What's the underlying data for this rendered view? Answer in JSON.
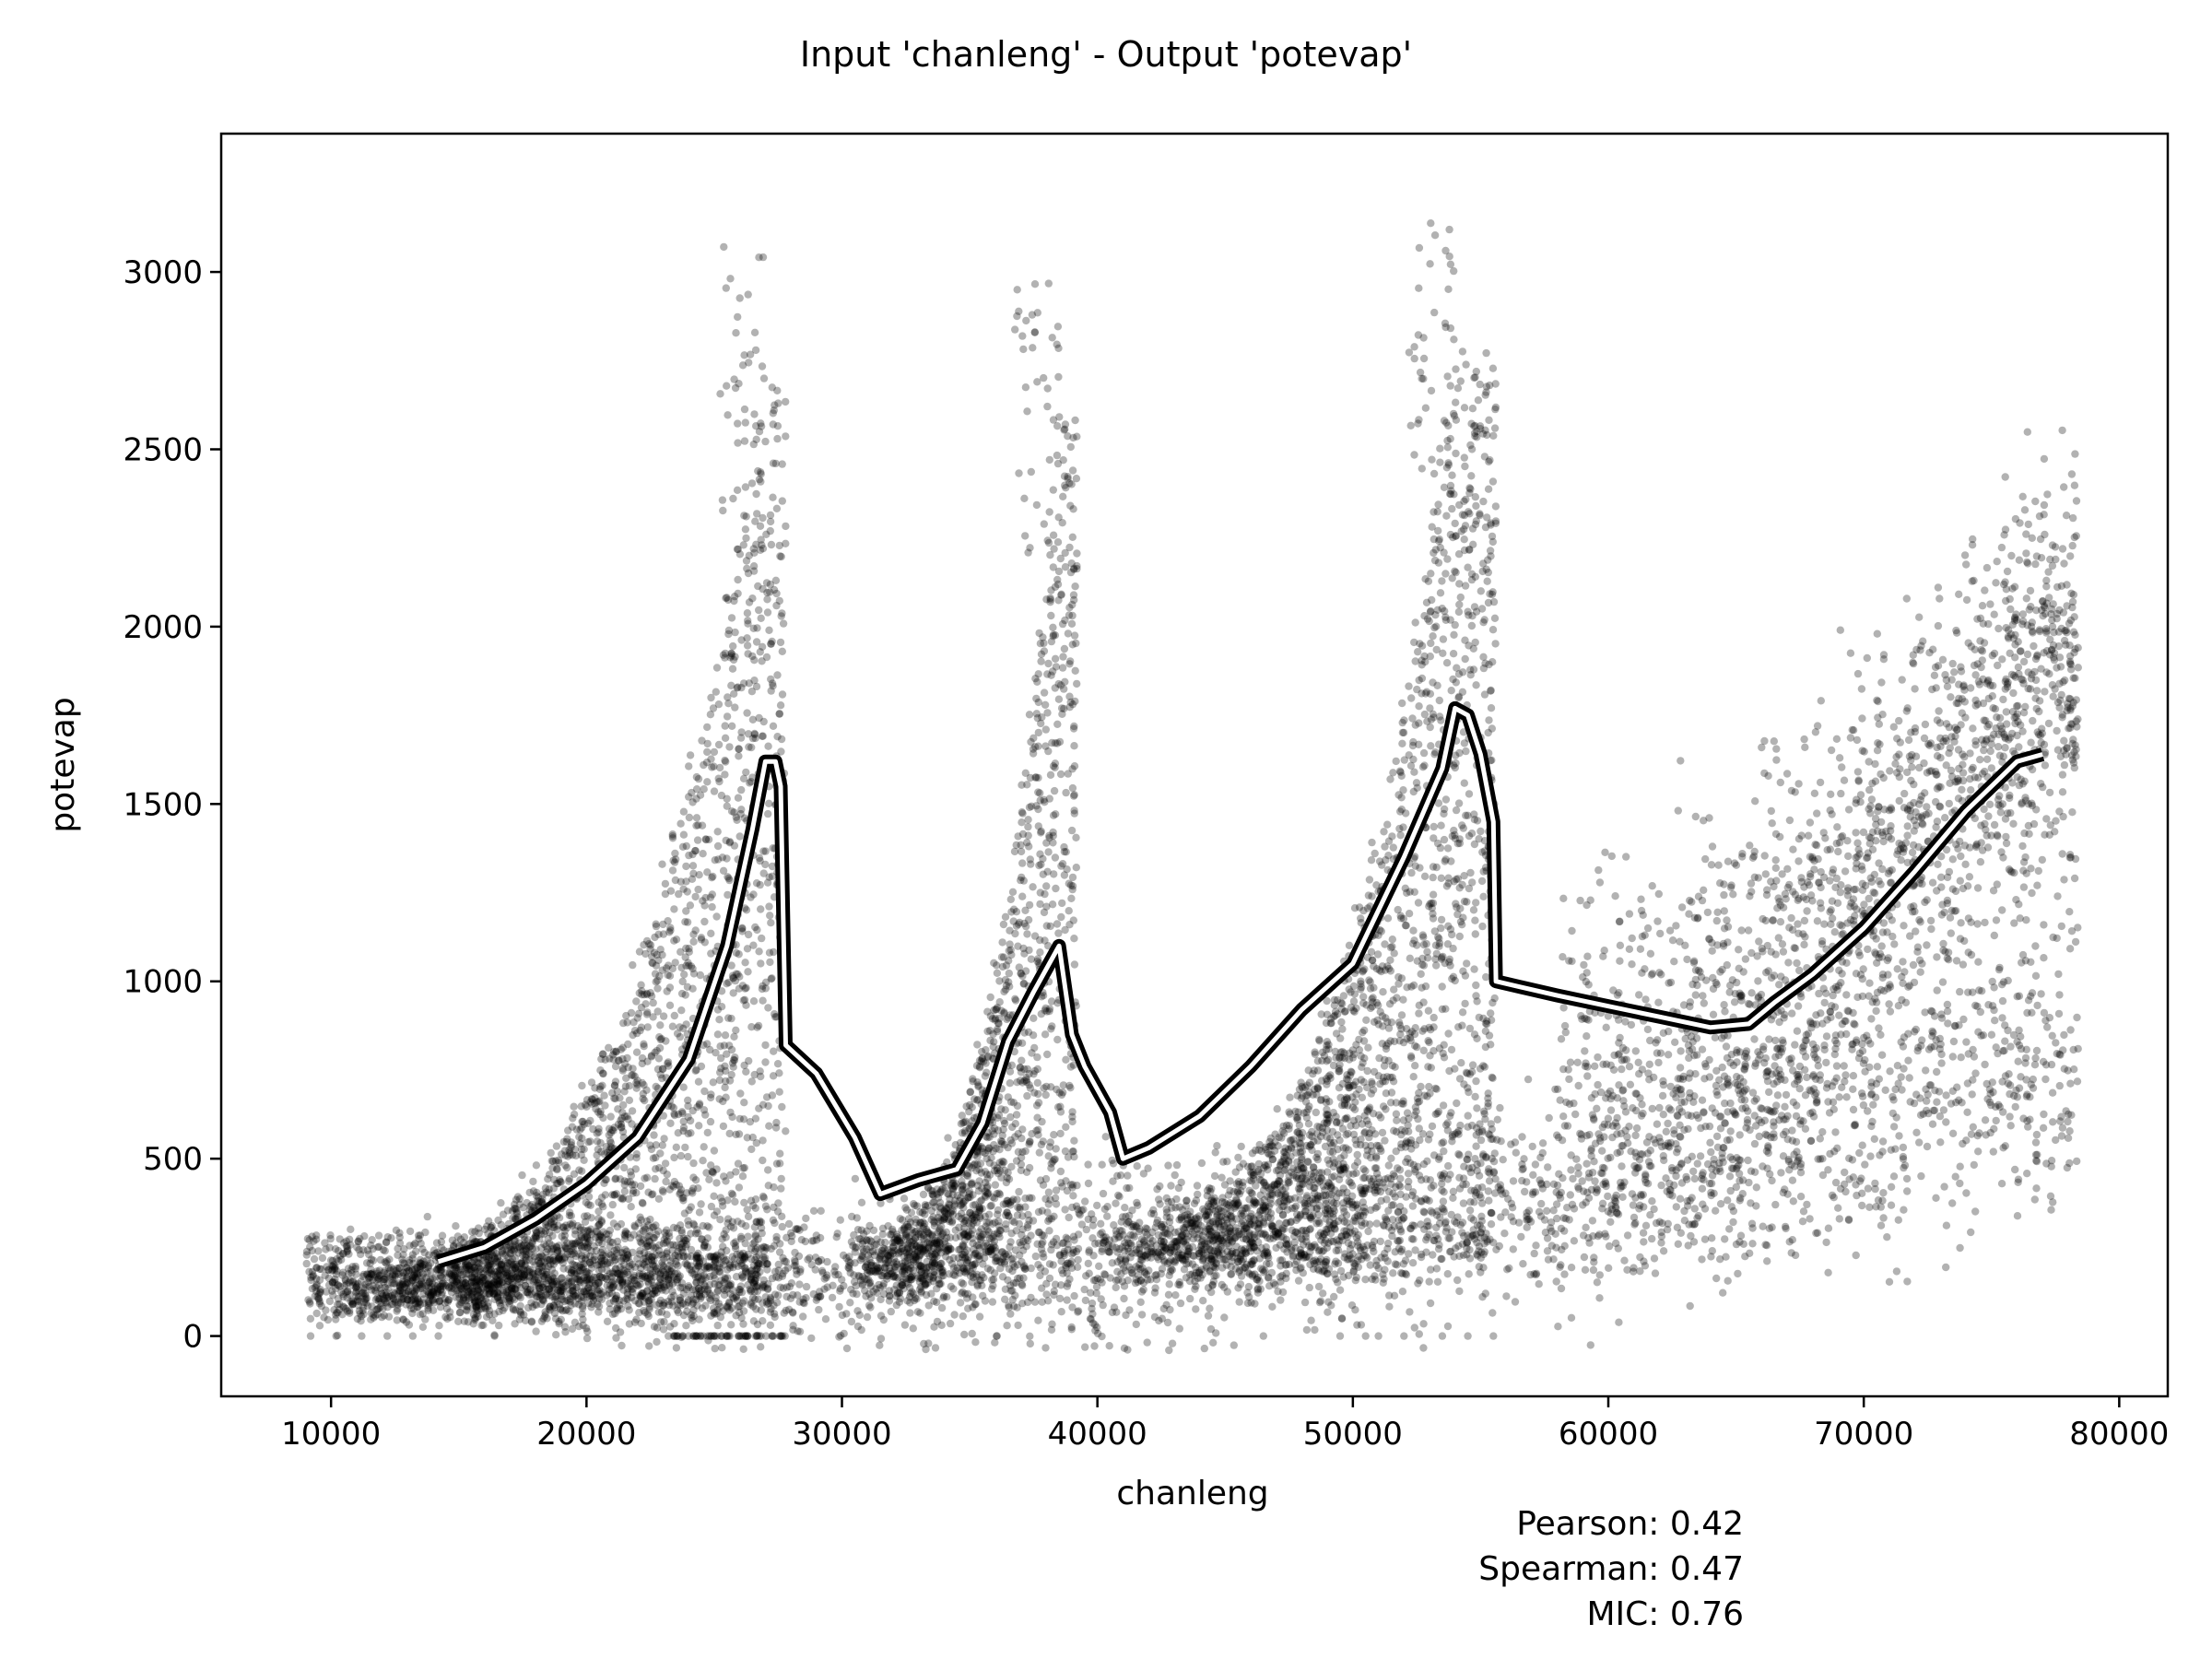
{
  "chart_data": {
    "type": "scatter",
    "title": "Input 'chanleng' - Output 'potevap'",
    "xlabel": "chanleng",
    "ylabel": "potevap",
    "xlim": [
      5700,
      81900
    ],
    "ylim": [
      -170,
      3390
    ],
    "xticks": [
      10000,
      20000,
      30000,
      40000,
      50000,
      60000,
      70000,
      80000
    ],
    "yticks": [
      0,
      500,
      1000,
      1500,
      2000,
      2500,
      3000
    ],
    "grid": false,
    "point_color": "#000000",
    "point_alpha": 0.3,
    "scatter_clusters": [
      {
        "x_start": 9000,
        "x_end": 27800,
        "peak_x": 27000,
        "peak_y": 2700,
        "base_y": 150
      },
      {
        "x_start": 30000,
        "x_end": 39200,
        "peak_x": 38500,
        "peak_y": 2600,
        "base_y": 250
      },
      {
        "x_start": 40000,
        "x_end": 55600,
        "peak_x": 54000,
        "peak_y": 2750,
        "base_y": 300
      },
      {
        "x_start": 15000,
        "x_end": 78400,
        "peak_x": 76500,
        "peak_y": 2500,
        "base_y": 150
      }
    ],
    "trend_line": {
      "x": [
        14200,
        16000,
        18000,
        20000,
        22000,
        24000,
        25500,
        26500,
        27000,
        27400,
        27600,
        27800,
        29000,
        30500,
        31500,
        33000,
        34500,
        35500,
        36500,
        37500,
        38500,
        39000,
        39500,
        40500,
        41000,
        42000,
        44000,
        46000,
        48000,
        50000,
        52000,
        53500,
        54000,
        54500,
        55000,
        55500,
        55600,
        58000,
        60000,
        62000,
        64000,
        65500,
        66500,
        68000,
        70000,
        72000,
        74000,
        76000,
        77000
      ],
      "y": [
        210,
        250,
        330,
        430,
        560,
        780,
        1100,
        1430,
        1620,
        1620,
        1550,
        820,
        740,
        560,
        400,
        440,
        470,
        600,
        830,
        970,
        1100,
        850,
        760,
        630,
        500,
        530,
        620,
        760,
        920,
        1050,
        1350,
        1600,
        1770,
        1750,
        1640,
        1450,
        1000,
        960,
        930,
        900,
        870,
        880,
        940,
        1020,
        1150,
        1310,
        1480,
        1620,
        1640
      ]
    }
  },
  "stats": {
    "pearson": "Pearson: 0.42",
    "spearman": "Spearman: 0.47",
    "mic": "MIC: 0.76"
  }
}
